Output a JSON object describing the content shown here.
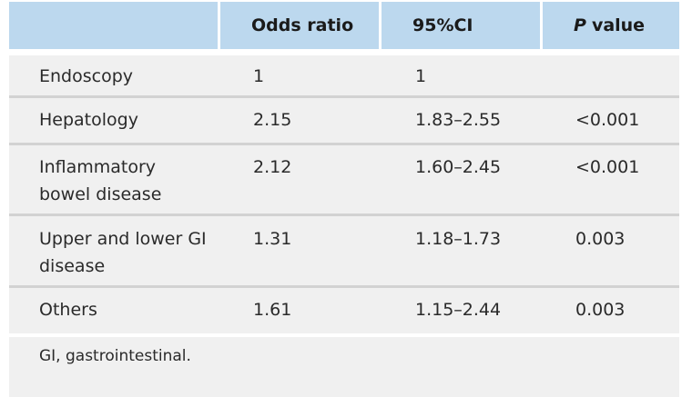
{
  "table": {
    "header": {
      "col0": "",
      "col1": "Odds ratio",
      "col2": "95%CI",
      "col3_italic": "P",
      "col3_rest": "value"
    },
    "rows": [
      {
        "category": "Endoscopy",
        "odds_ratio": "1",
        "ci": "1",
        "p_value": ""
      },
      {
        "category": "Hepatology",
        "odds_ratio": "2.15",
        "ci": "1.83–2.55",
        "p_value": "<0.001"
      },
      {
        "category": "Inflammatory bowel disease",
        "odds_ratio": "2.12",
        "ci": "1.60–2.45",
        "p_value": "<0.001"
      },
      {
        "category": "Upper and lower GI disease",
        "odds_ratio": "1.31",
        "ci": "1.18–1.73",
        "p_value": "0.003"
      },
      {
        "category": "Others",
        "odds_ratio": "1.61",
        "ci": "1.15–2.44",
        "p_value": "0.003"
      }
    ],
    "footnote": "GI, gastrointestinal."
  },
  "colors": {
    "header_bg": "#bcd8ee",
    "body_bg": "#f0f0f0",
    "divider": "#d2d2d2"
  }
}
